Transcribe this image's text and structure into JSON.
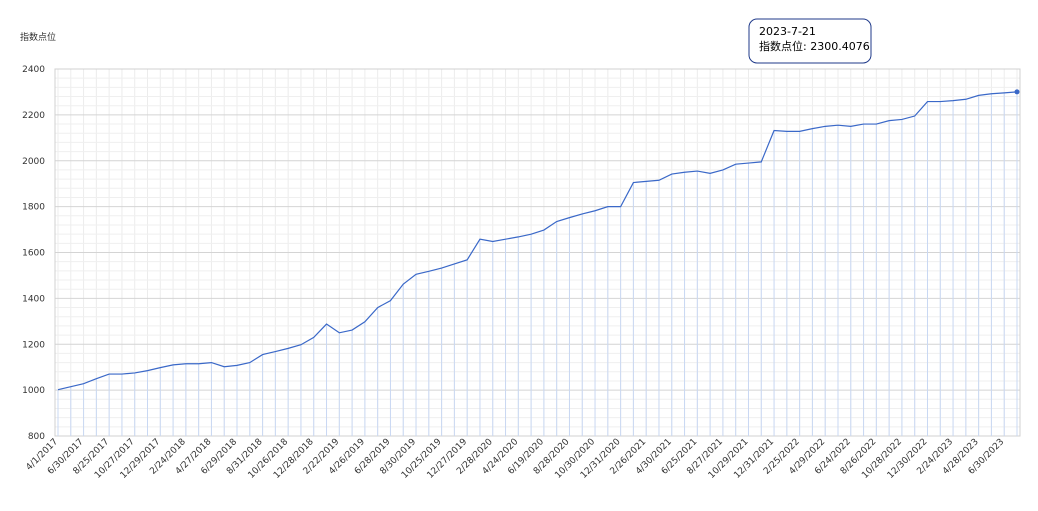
{
  "chart_data": {
    "type": "line",
    "y_label": "指数点位",
    "categories": [
      "4/1/2017",
      null,
      "6/30/2017",
      null,
      "8/25/2017",
      null,
      "10/27/2017",
      null,
      "12/29/2017",
      null,
      "2/24/2018",
      null,
      "4/27/2018",
      null,
      "6/29/2018",
      null,
      "8/31/2018",
      null,
      "10/26/2018",
      null,
      "12/28/2018",
      null,
      "2/22/2019",
      null,
      "4/26/2019",
      null,
      "6/28/2019",
      null,
      "8/30/2019",
      null,
      "10/25/2019",
      null,
      "12/27/2019",
      null,
      "2/28/2020",
      null,
      "4/24/2020",
      null,
      "6/19/2020",
      null,
      "8/28/2020",
      null,
      "10/30/2020",
      null,
      "12/31/2020",
      null,
      "2/26/2021",
      null,
      "4/30/2021",
      null,
      "6/25/2021",
      null,
      "8/27/2021",
      null,
      "10/29/2021",
      null,
      "12/31/2021",
      null,
      "2/25/2022",
      null,
      "4/29/2022",
      null,
      "6/24/2022",
      null,
      "8/26/2022",
      null,
      "10/28/2022",
      null,
      "12/30/2022",
      null,
      "2/24/2023",
      null,
      "4/28/2023",
      null,
      "6/30/2023",
      null
    ],
    "values": [
      1002,
      1015,
      1028,
      1050,
      1070,
      1070,
      1075,
      1085,
      1098,
      1110,
      1115,
      1115,
      1120,
      1102,
      1108,
      1120,
      1155,
      1168,
      1182,
      1198,
      1230,
      1288,
      1250,
      1262,
      1298,
      1360,
      1390,
      1462,
      1505,
      1518,
      1532,
      1550,
      1568,
      1658,
      1648,
      1658,
      1668,
      1680,
      1698,
      1735,
      1752,
      1768,
      1782,
      1800,
      1800,
      1905,
      1910,
      1915,
      1942,
      1950,
      1955,
      1945,
      1960,
      1985,
      1990,
      1995,
      2132,
      2128,
      2128,
      2140,
      2150,
      2155,
      2150,
      2160,
      2160,
      2175,
      2180,
      2195,
      2258,
      2258,
      2262,
      2268,
      2285,
      2292,
      2296,
      2300.4076
    ],
    "color": "#3a68c8",
    "ylim": [
      800,
      2400
    ],
    "yticks": [
      800,
      1000,
      1200,
      1400,
      1600,
      1800,
      2000,
      2200,
      2400
    ],
    "grid": true,
    "tooltip": {
      "date": "2023-7-21",
      "text": "指数点位: 2300.4076"
    }
  }
}
